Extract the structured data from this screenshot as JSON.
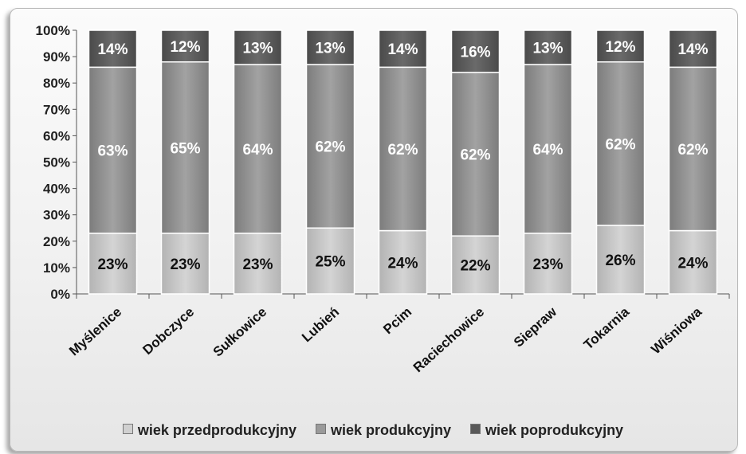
{
  "chart_data": {
    "type": "bar",
    "stacked": true,
    "categories": [
      "Myślenice",
      "Dobczyce",
      "Sułkowice",
      "Lubień",
      "Pcim",
      "Raciechowice",
      "Siepraw",
      "Tokarnia",
      "Wiśniowa"
    ],
    "series": [
      {
        "name": "wiek przedprodukcyjny",
        "color": "#c4c4c4",
        "values": [
          23,
          23,
          23,
          25,
          24,
          22,
          23,
          26,
          24
        ],
        "labels": [
          "23%",
          "23%",
          "23%",
          "25%",
          "24%",
          "22%",
          "23%",
          "26%",
          "24%"
        ]
      },
      {
        "name": "wiek produkcyjny",
        "color": "#8e8e8e",
        "values": [
          63,
          65,
          64,
          62,
          62,
          62,
          64,
          62,
          62
        ],
        "labels": [
          "63%",
          "65%",
          "64%",
          "62%",
          "62%",
          "62%",
          "64%",
          "62%",
          "62%"
        ]
      },
      {
        "name": "wiek poprodukcyjny",
        "color": "#595959",
        "values": [
          14,
          12,
          13,
          13,
          14,
          16,
          13,
          12,
          14
        ],
        "labels": [
          "14%",
          "12%",
          "13%",
          "13%",
          "14%",
          "16%",
          "13%",
          "12%",
          "14%"
        ]
      }
    ],
    "yticks": [
      "0%",
      "10%",
      "20%",
      "30%",
      "40%",
      "50%",
      "60%",
      "70%",
      "80%",
      "90%",
      "100%"
    ],
    "ylim": [
      0,
      100
    ],
    "grid": false,
    "legend_position": "bottom"
  }
}
